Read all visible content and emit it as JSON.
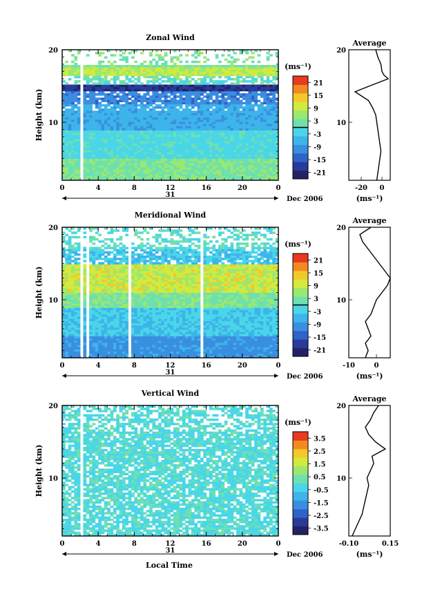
{
  "figure": {
    "date_label": "Dec 2006",
    "day_label": "31",
    "x_axis_label": "Local Time"
  },
  "chart_data": [
    {
      "type": "heatmap",
      "title": "Zonal Wind",
      "ylabel": "Height (km)",
      "xlim": [
        0,
        24
      ],
      "ylim": [
        2,
        20
      ],
      "x_ticks": [
        "0",
        "4",
        "8",
        "12",
        "16",
        "20",
        "0"
      ],
      "y_ticks": [
        {
          "v": 10,
          "label": "10"
        },
        {
          "v": 20,
          "label": "20"
        }
      ],
      "colorbar": {
        "unit": "(ms⁻¹)",
        "min": -24,
        "max": 24,
        "labels": [
          "21",
          "15",
          "9",
          "3",
          "-3",
          "-9",
          "-15",
          "-21"
        ],
        "marker": 0
      },
      "profile": {
        "title": "Average",
        "xlabel": "(ms⁻¹)",
        "xlim": [
          -32,
          8
        ],
        "x_ticks": [
          {
            "v": -20,
            "label": "-20"
          },
          {
            "v": 0,
            "label": "0"
          }
        ],
        "y_ticks": [
          {
            "v": 10,
            "label": "10"
          },
          {
            "v": 20,
            "label": "20"
          }
        ],
        "points": [
          [
            -5,
            2
          ],
          [
            -4,
            3
          ],
          [
            -3,
            4
          ],
          [
            -2,
            5
          ],
          [
            -1,
            6
          ],
          [
            -2,
            7
          ],
          [
            -3,
            8
          ],
          [
            -4,
            9
          ],
          [
            -5,
            10
          ],
          [
            -6,
            11
          ],
          [
            -9,
            12
          ],
          [
            -13,
            13
          ],
          [
            -26,
            14.2
          ],
          [
            -12,
            15
          ],
          [
            6,
            16
          ],
          [
            2,
            16.5
          ],
          [
            0,
            17
          ],
          [
            -1,
            18
          ],
          [
            -4,
            19
          ],
          [
            -6,
            20
          ]
        ]
      }
    },
    {
      "type": "heatmap",
      "title": "Meridional Wind",
      "ylabel": "Height (km)",
      "xlim": [
        0,
        24
      ],
      "ylim": [
        2,
        20
      ],
      "x_ticks": [
        "0",
        "4",
        "8",
        "12",
        "16",
        "20",
        "0"
      ],
      "y_ticks": [
        {
          "v": 10,
          "label": "10"
        },
        {
          "v": 20,
          "label": "20"
        }
      ],
      "colorbar": {
        "unit": "(ms⁻¹)",
        "min": -24,
        "max": 24,
        "labels": [
          "21",
          "15",
          "9",
          "3",
          "-3",
          "-9",
          "-15",
          "-21"
        ],
        "marker": 0
      },
      "profile": {
        "title": "Average",
        "xlabel": "(ms⁻¹)",
        "xlim": [
          -10,
          5
        ],
        "x_ticks": [
          {
            "v": -10,
            "label": "-10"
          },
          {
            "v": 0,
            "label": "0"
          }
        ],
        "y_ticks": [
          {
            "v": 10,
            "label": "10"
          },
          {
            "v": 20,
            "label": "20"
          }
        ],
        "points": [
          [
            -4,
            2
          ],
          [
            -3,
            3
          ],
          [
            -4,
            4
          ],
          [
            -2,
            5
          ],
          [
            -3,
            6
          ],
          [
            -4,
            7
          ],
          [
            -2,
            8
          ],
          [
            -1,
            9
          ],
          [
            0,
            10
          ],
          [
            2,
            11
          ],
          [
            4,
            12
          ],
          [
            5,
            13
          ],
          [
            3,
            14
          ],
          [
            1,
            15
          ],
          [
            -1,
            16
          ],
          [
            -3,
            17
          ],
          [
            -5,
            18
          ],
          [
            -6,
            19
          ],
          [
            -2,
            20
          ]
        ]
      }
    },
    {
      "type": "heatmap",
      "title": "Vertical Wind",
      "ylabel": "Height (km)",
      "xlim": [
        0,
        24
      ],
      "ylim": [
        2,
        20
      ],
      "x_ticks": [
        "0",
        "4",
        "8",
        "12",
        "16",
        "20",
        "0"
      ],
      "y_ticks": [
        {
          "v": 10,
          "label": "10"
        },
        {
          "v": 20,
          "label": "20"
        }
      ],
      "colorbar": {
        "unit": "(ms⁻¹)",
        "min": -4,
        "max": 4,
        "labels": [
          "3.5",
          "2.5",
          "1.5",
          "0.5",
          "-0.5",
          "-1.5",
          "-2.5",
          "-3.5"
        ],
        "marker": null
      },
      "profile": {
        "title": "Average",
        "xlabel": "(ms⁻¹)",
        "xlim": [
          -0.1,
          0.15
        ],
        "x_ticks": [
          {
            "v": -0.1,
            "label": "-0.10"
          },
          {
            "v": 0.15,
            "label": "0.15"
          }
        ],
        "y_ticks": [
          {
            "v": 10,
            "label": "10"
          },
          {
            "v": 20,
            "label": "20"
          }
        ],
        "points": [
          [
            -0.08,
            2
          ],
          [
            -0.06,
            3
          ],
          [
            -0.04,
            4
          ],
          [
            -0.02,
            5
          ],
          [
            -0.01,
            6
          ],
          [
            0.0,
            7
          ],
          [
            0.01,
            8
          ],
          [
            0.02,
            9
          ],
          [
            0.01,
            10
          ],
          [
            0.03,
            11
          ],
          [
            0.05,
            12
          ],
          [
            0.04,
            13
          ],
          [
            0.12,
            14
          ],
          [
            0.06,
            15
          ],
          [
            0.02,
            16
          ],
          [
            0.0,
            17
          ],
          [
            0.03,
            18
          ],
          [
            0.05,
            19
          ],
          [
            0.08,
            20
          ]
        ]
      }
    }
  ]
}
